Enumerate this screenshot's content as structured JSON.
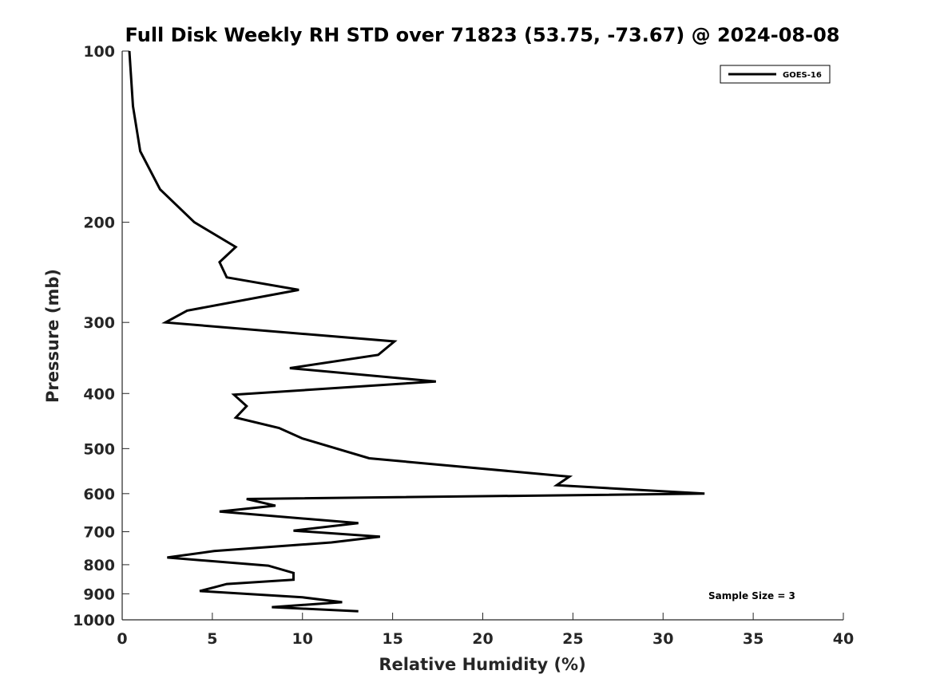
{
  "chart_data": {
    "type": "line",
    "title": "Full Disk Weekly RH STD over 71823 (53.75, -73.67) @ 2024-08-08",
    "xlabel": "Relative Humidity (%)",
    "ylabel": "Pressure (mb)",
    "xlim": [
      0,
      40
    ],
    "ylim": [
      100,
      1000
    ],
    "y_scale": "log",
    "y_reversed": true,
    "x_ticks": [
      0,
      5,
      10,
      15,
      20,
      25,
      30,
      35,
      40
    ],
    "y_ticks": [
      100,
      200,
      300,
      400,
      500,
      600,
      700,
      800,
      900,
      1000
    ],
    "grid": false,
    "legend_position": "top-right",
    "annotation": "Sample Size = 3",
    "series": [
      {
        "name": "GOES-16",
        "color": "#000000",
        "points": [
          [
            0.4,
            100
          ],
          [
            0.6,
            125
          ],
          [
            1.0,
            150
          ],
          [
            2.1,
            175
          ],
          [
            4.0,
            200
          ],
          [
            6.3,
            221
          ],
          [
            5.4,
            235
          ],
          [
            5.8,
            250
          ],
          [
            9.8,
            263
          ],
          [
            3.6,
            286
          ],
          [
            2.4,
            300
          ],
          [
            15.1,
            324
          ],
          [
            14.2,
            342
          ],
          [
            9.3,
            361
          ],
          [
            17.4,
            381
          ],
          [
            6.2,
            402
          ],
          [
            6.9,
            421
          ],
          [
            6.3,
            441
          ],
          [
            8.7,
            460
          ],
          [
            10.0,
            480
          ],
          [
            13.7,
            520
          ],
          [
            24.8,
            560
          ],
          [
            24.1,
            580
          ],
          [
            32.3,
            600
          ],
          [
            6.9,
            613
          ],
          [
            8.5,
            630
          ],
          [
            5.4,
            645
          ],
          [
            13.1,
            676
          ],
          [
            9.5,
            697
          ],
          [
            14.3,
            714
          ],
          [
            11.6,
            731
          ],
          [
            5.1,
            757
          ],
          [
            2.5,
            777
          ],
          [
            8.1,
            803
          ],
          [
            9.5,
            827
          ],
          [
            9.5,
            850
          ],
          [
            5.8,
            865
          ],
          [
            5.2,
            875
          ],
          [
            4.3,
            890
          ],
          [
            10.0,
            913
          ],
          [
            12.2,
            931
          ],
          [
            8.3,
            950
          ],
          [
            13.1,
            966
          ]
        ]
      }
    ]
  }
}
